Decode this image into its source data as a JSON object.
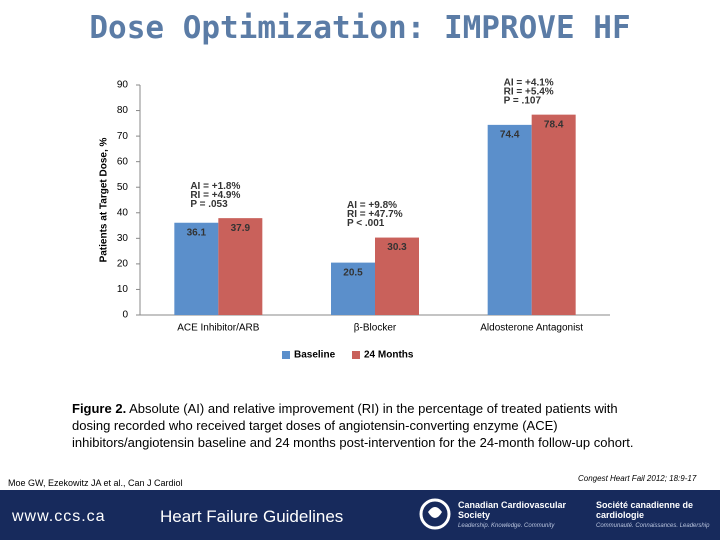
{
  "slide_title": "Dose Optimization: IMPROVE HF",
  "chart_data": {
    "type": "bar",
    "y_label": "Patients at Target Dose, %",
    "categories": [
      "ACE Inhibitor/ARB",
      "β-Blocker",
      "Aldosterone Antagonist"
    ],
    "series": [
      {
        "name": "Baseline",
        "color": "#5b8fcb",
        "values": [
          36.1,
          20.5,
          74.4
        ]
      },
      {
        "name": "24 Months",
        "color": "#c9615b",
        "values": [
          37.9,
          30.3,
          78.4
        ]
      }
    ],
    "ylim": [
      0,
      90
    ],
    "yticks": [
      0,
      10,
      20,
      30,
      40,
      50,
      60,
      70,
      80,
      90
    ],
    "grid": false,
    "legend": "bottom",
    "annotations": [
      [
        "AI = +1.8%",
        "RI = +4.9%",
        "P = .053"
      ],
      [
        "AI = +9.8%",
        "RI = +47.7%",
        "P < .001"
      ],
      [
        "AI = +4.1%",
        "RI = +5.4%",
        "P = .107"
      ]
    ]
  },
  "caption": {
    "label": "Figure 2.",
    "text": "Absolute (AI) and relative improvement (RI) in the percentage of treated patients with dosing recorded who received target doses of angiotensin-converting enzyme (ACE) inhibitors/angiotensin baseline and 24 months post-intervention for the 24-month follow-up cohort."
  },
  "citation": "Moe GW, Ezekowitz JA et al., Can J Cardiol",
  "source": "Congest Heart Fail 2012; 18:9-17",
  "footer": {
    "url": "www.ccs.ca",
    "title": "Heart Failure Guidelines",
    "org_en": "Canadian Cardiovascular Society",
    "tag_en": "Leadership. Knowledge. Community",
    "org_fr": "Société canadienne de cardiologie",
    "tag_fr": "Communauté. Connaissances. Leadership"
  }
}
